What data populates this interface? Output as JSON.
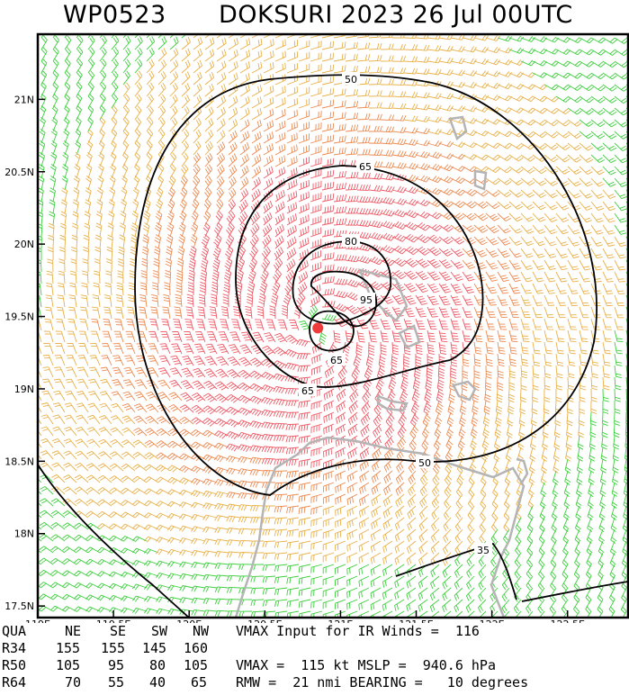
{
  "header": {
    "storm_id": "WP0523",
    "storm_title": "DOKSURI 2023 26 Jul 00UTC"
  },
  "map": {
    "lon_range": [
      119.0,
      122.9
    ],
    "lat_range": [
      17.42,
      21.45
    ],
    "lon_ticks": [
      "119E",
      "119.5E",
      "120E",
      "120.5E",
      "121E",
      "121.5E",
      "122E",
      "122.5E"
    ],
    "lat_ticks": [
      "17.5N",
      "18N",
      "18.5N",
      "19N",
      "19.5N",
      "20N",
      "20.5N",
      "21N"
    ],
    "center": {
      "lon": 120.85,
      "lat": 19.42
    },
    "contour_labels": [
      "50",
      "65",
      "80",
      "95",
      "65",
      "65",
      "50",
      "35"
    ],
    "colors": {
      "frame": "#000000",
      "contour": "#000000",
      "coast": "#b4b4b4",
      "barb_34": "#e8b048",
      "barb_50": "#ec8a50",
      "barb_64": "#ee5a66",
      "barb_low": "#3ccf3c",
      "center_dot": "#ee3b3b"
    }
  },
  "wind_radii": {
    "header": {
      "qua": "QUA",
      "ne": "NE",
      "se": "SE",
      "sw": "SW",
      "nw": "NW"
    },
    "rows": [
      {
        "label": "R34",
        "ne": "155",
        "se": "155",
        "sw": "145",
        "nw": "160"
      },
      {
        "label": "R50",
        "ne": "105",
        "se": "95",
        "sw": "80",
        "nw": "105"
      },
      {
        "label": "R64",
        "ne": "70",
        "se": "55",
        "sw": "40",
        "nw": "65"
      }
    ]
  },
  "summary": {
    "line1": "VMAX Input for IR Winds =  116",
    "line2": "VMAX =  115 kt MSLP =  940.6 hPa",
    "line3": "RMW =  21 nmi BEARING =   10 degrees"
  }
}
